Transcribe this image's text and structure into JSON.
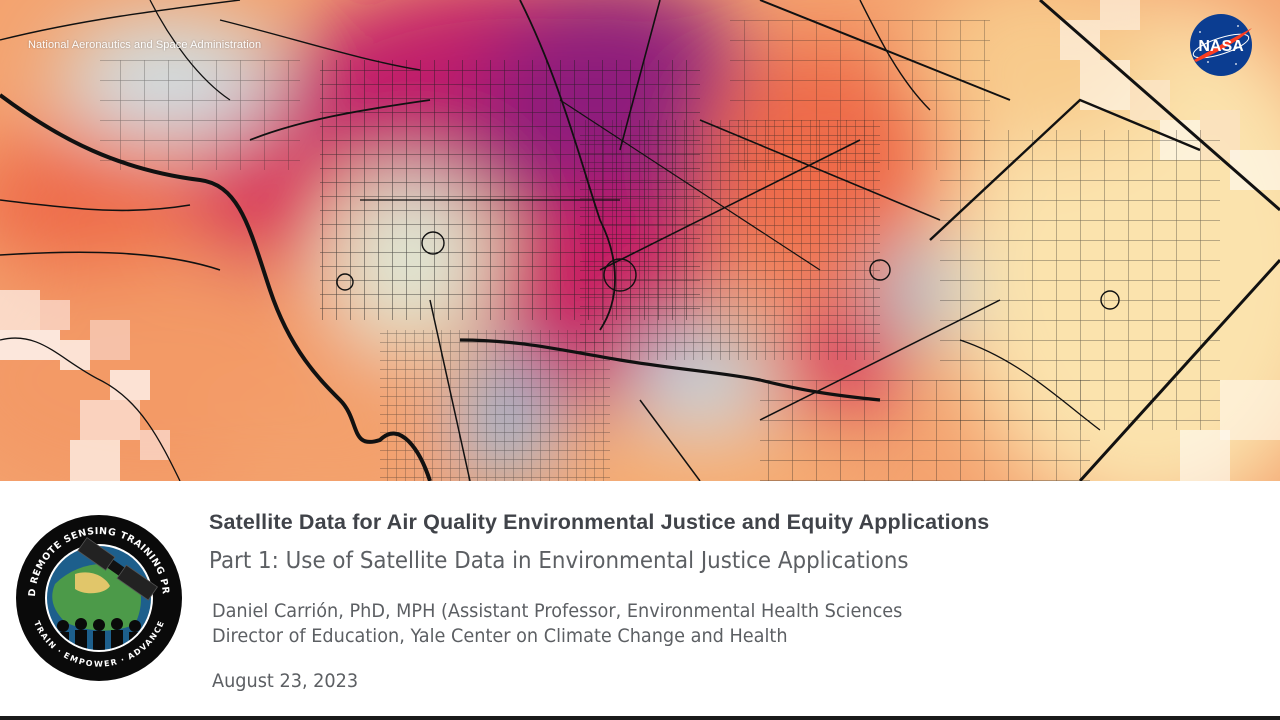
{
  "hero": {
    "agency_name": "National Aeronautics and Space Administration",
    "nasa_logo_text": "NASA",
    "image_content": "heat-map-of-city-streets"
  },
  "program_badge": {
    "top_text": "APPLIED REMOTE SENSING TRAINING PROGRAM",
    "bottom_text": "TRAIN · EMPOWER · ADVANCE",
    "icon": "satellite-globe-people-icon"
  },
  "title": "Satellite Data for Air Quality Environmental Justice and Equity Applications",
  "subtitle": "Part 1: Use of Satellite Data in Environmental Justice Applications",
  "author": {
    "line1": "Daniel Carrión, PhD, MPH (Assistant Professor, Environmental Health Sciences",
    "line2": "Director of Education, Yale Center on Climate Change and Health"
  },
  "date": "August 23, 2023",
  "colors": {
    "heat_high": "#8e1a7c",
    "heat_mid_high": "#c81e62",
    "heat_mid": "#ee6a4a",
    "heat_low_mid": "#f6b374",
    "heat_low": "#fbe7b5",
    "cool": "#9ec2da",
    "text_dark": "#404349",
    "text_mid": "#5c5f63",
    "nasa_blue": "#0b3d91",
    "nasa_red": "#fc3d21"
  }
}
